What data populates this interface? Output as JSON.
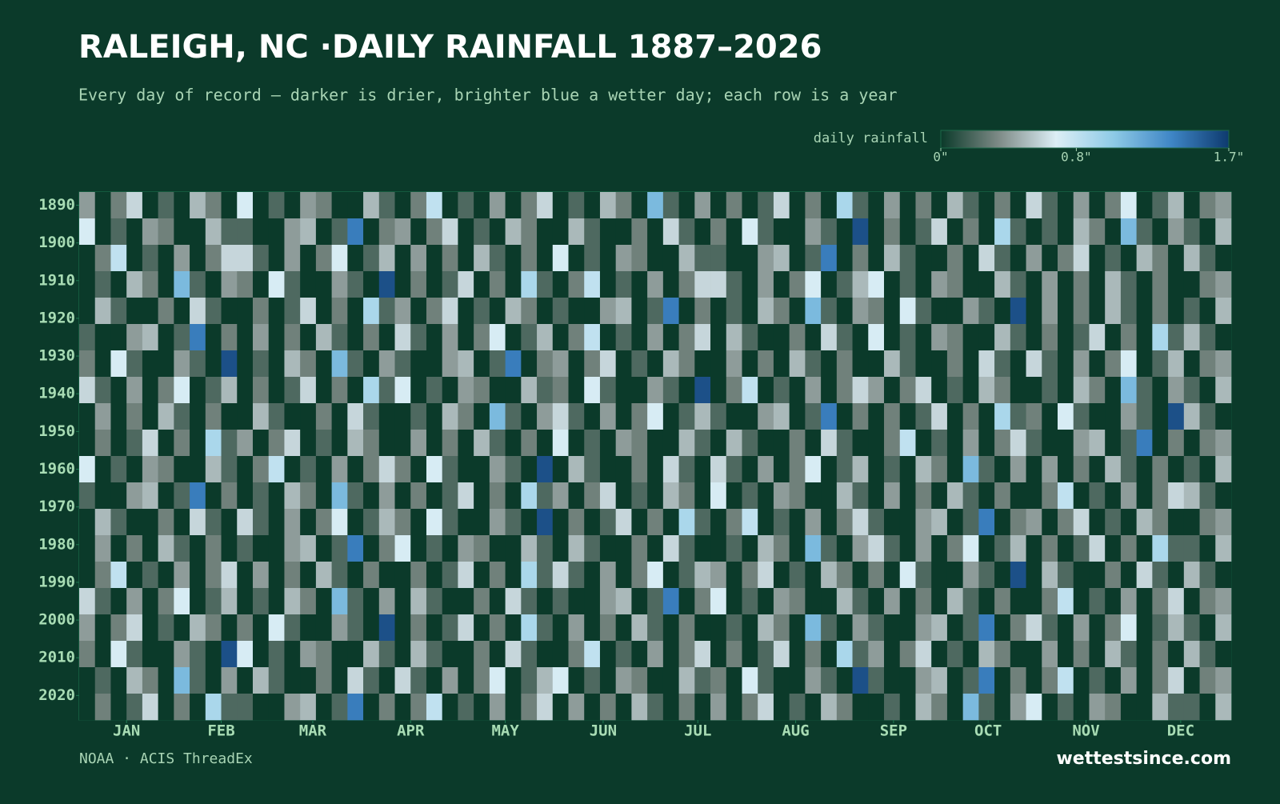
{
  "chart_data": {
    "type": "heatmap",
    "title": "RALEIGH, NC ·DAILY RAINFALL 1887–2026",
    "subtitle": "Every day of record — darker is drier, brighter blue a wetter day; each row is a year",
    "source": "NOAA · ACIS ThreadEx",
    "brand": "wettestsince.com",
    "colorbar_label": "daily rainfall",
    "zlim": [
      0,
      1.7
    ],
    "zticks": [
      {
        "value": 0,
        "label": "0\""
      },
      {
        "value": 0.8,
        "label": "0.8\""
      },
      {
        "value": 1.7,
        "label": "1.7\""
      }
    ],
    "colors": [
      "#0b3a2a",
      "#7d8a86",
      "#dceef5",
      "#8ecae6",
      "#3f86c6",
      "#0e3a6e"
    ],
    "ylim": [
      1887,
      2027
    ],
    "yticks": [
      1890,
      1900,
      1910,
      1920,
      1930,
      1940,
      1950,
      1960,
      1970,
      1980,
      1990,
      2000,
      2010,
      2020
    ],
    "xlim": [
      1,
      366
    ],
    "xticks": [
      {
        "value": 16,
        "label": "JAN"
      },
      {
        "value": 46,
        "label": "FEB"
      },
      {
        "value": 75,
        "label": "MAR"
      },
      {
        "value": 106,
        "label": "APR"
      },
      {
        "value": 136,
        "label": "MAY"
      },
      {
        "value": 167,
        "label": "JUN"
      },
      {
        "value": 197,
        "label": "JUL"
      },
      {
        "value": 228,
        "label": "AUG"
      },
      {
        "value": 259,
        "label": "SEP"
      },
      {
        "value": 289,
        "label": "OCT"
      },
      {
        "value": 320,
        "label": "NOV"
      },
      {
        "value": 350,
        "label": "DEC"
      }
    ],
    "z": [
      [
        0.4,
        0,
        0.3,
        0.6,
        0,
        0.2,
        0,
        0.5,
        0.3,
        0,
        0.7,
        0,
        0.2,
        0,
        0.4,
        0.3,
        0,
        0,
        0.5,
        0.2,
        0,
        0.3,
        0.8,
        0,
        0.2,
        0,
        0.4,
        0,
        0.3,
        0.6,
        0,
        0.2,
        0,
        0.5,
        0.3,
        0,
        1.1,
        0.2,
        0,
        0.4,
        0,
        0.3,
        0,
        0.2,
        0.6,
        0,
        0.3,
        0,
        0.9,
        0.2,
        0,
        0.4,
        0,
        0.3,
        0,
        0.5,
        0.2,
        0,
        0.3,
        0,
        0.6,
        0.2,
        0,
        0.4,
        0,
        0.3,
        0.7,
        0,
        0.2,
        0.5,
        0,
        0.3,
        0.4
      ],
      [
        0.7,
        0,
        0.2,
        0,
        0.4,
        0.3,
        0,
        0,
        0.5,
        0.2,
        0.2,
        0,
        0,
        0.4,
        0.5,
        0,
        0.2,
        1.4,
        0,
        0.3,
        0.4,
        0,
        0.3,
        0.6,
        0,
        0.2,
        0,
        0.5,
        0.3,
        0,
        0,
        0.5,
        0.2,
        0,
        0,
        0.3,
        0,
        0.6,
        0.2,
        0,
        0.3,
        0,
        0.7,
        0.2,
        0,
        0,
        0.4,
        0.2,
        0,
        1.6,
        0,
        0.3,
        0,
        0.2,
        0.6,
        0,
        0.3,
        0,
        0.9,
        0.2,
        0,
        0.2,
        0,
        0.5,
        0.3,
        0,
        1.1,
        0.2,
        0,
        0.4,
        0.2,
        0,
        0.5
      ],
      [
        0,
        0.3,
        0.8,
        0,
        0.2,
        0,
        0.4,
        0,
        0.3,
        0.6,
        0.6,
        0.2,
        0,
        0.4,
        0,
        0.3,
        0.7,
        0,
        0.2,
        0.5,
        0,
        0.4,
        0,
        0.3,
        0,
        0.5,
        0.2,
        0,
        0.3,
        0,
        0.7,
        0,
        0.2,
        0,
        0.4,
        0.3,
        0,
        0,
        0.5,
        0.2,
        0.2,
        0,
        0,
        0.4,
        0.5,
        0,
        0.2,
        1.4,
        0,
        0.3,
        0,
        0.5,
        0.2,
        0,
        0,
        0.3,
        0,
        0.6,
        0.2,
        0,
        0.4,
        0,
        0.3,
        0.6,
        0,
        0.2,
        0,
        0.5,
        0.3,
        0,
        0.5,
        0.2,
        0
      ],
      [
        0,
        0.2,
        0,
        0.5,
        0.3,
        0,
        1.1,
        0.2,
        0,
        0.4,
        0.3,
        0,
        0.7,
        0.2,
        0,
        0,
        0.4,
        0.2,
        0,
        1.6,
        0,
        0.3,
        0,
        0.2,
        0.6,
        0,
        0.3,
        0,
        0.9,
        0.2,
        0,
        0.3,
        0.8,
        0,
        0.2,
        0,
        0.4,
        0,
        0.3,
        0.6,
        0.6,
        0.2,
        0,
        0.4,
        0,
        0.3,
        0.7,
        0,
        0.2,
        0.5,
        0.7,
        0,
        0.2,
        0,
        0.4,
        0.3,
        0,
        0,
        0.5,
        0.2,
        0,
        0.4,
        0,
        0.3,
        0,
        0.5,
        0.2,
        0,
        0.3,
        0,
        0,
        0.3,
        0.4
      ],
      [
        0,
        0.5,
        0.2,
        0,
        0,
        0.3,
        0,
        0.6,
        0.2,
        0,
        0,
        0.3,
        0,
        0.2,
        0.6,
        0,
        0.3,
        0,
        0.9,
        0.2,
        0.4,
        0,
        0.3,
        0.6,
        0,
        0.2,
        0,
        0.5,
        0.3,
        0,
        0.2,
        0,
        0,
        0.4,
        0.5,
        0,
        0.2,
        1.4,
        0,
        0.3,
        0,
        0.2,
        0,
        0.5,
        0.3,
        0,
        1.1,
        0.2,
        0,
        0.4,
        0.3,
        0,
        0.7,
        0.2,
        0,
        0,
        0.4,
        0.2,
        0,
        1.6,
        0,
        0.4,
        0,
        0.3,
        0,
        0.5,
        0.2,
        0,
        0.3,
        0,
        0.2,
        0,
        0.5
      ],
      [
        0.2,
        0,
        0,
        0.4,
        0.5,
        0,
        0.2,
        1.4,
        0,
        0.3,
        0,
        0.4,
        0,
        0.3,
        0,
        0.5,
        0.2,
        0,
        0.3,
        0,
        0.6,
        0.2,
        0,
        0.4,
        0,
        0.3,
        0.7,
        0,
        0.2,
        0.5,
        0,
        0.3,
        0.8,
        0,
        0.2,
        0,
        0.4,
        0,
        0.3,
        0.6,
        0,
        0.5,
        0.2,
        0,
        0,
        0.3,
        0,
        0.6,
        0.2,
        0,
        0.7,
        0,
        0.2,
        0,
        0.4,
        0.3,
        0,
        0,
        0.5,
        0.2,
        0,
        0.3,
        0,
        0.2,
        0.6,
        0,
        0.3,
        0,
        0.9,
        0.2,
        0.5,
        0.2,
        0
      ],
      [
        0.3,
        0,
        0.7,
        0.2,
        0,
        0,
        0.4,
        0.2,
        0,
        1.6,
        0,
        0.2,
        0,
        0.5,
        0.3,
        0,
        1.1,
        0.2,
        0,
        0.4,
        0.2,
        0,
        0,
        0.4,
        0.5,
        0,
        0.2,
        1.4,
        0,
        0.3,
        0.4,
        0,
        0.3,
        0.6,
        0,
        0.2,
        0,
        0.5,
        0.3,
        0,
        0,
        0.4,
        0,
        0.3,
        0,
        0.5,
        0.2,
        0,
        0.3,
        0,
        0,
        0.5,
        0.2,
        0,
        0,
        0.3,
        0,
        0.6,
        0.2,
        0,
        0.6,
        0.2,
        0,
        0.4,
        0,
        0.3,
        0.7,
        0,
        0.2,
        0.5,
        0,
        0.3,
        0.4
      ],
      [
        0.6,
        0.2,
        0,
        0.4,
        0,
        0.3,
        0.7,
        0,
        0.2,
        0.5,
        0,
        0.3,
        0,
        0.2,
        0.6,
        0,
        0.3,
        0,
        0.9,
        0.2,
        0.7,
        0,
        0.2,
        0,
        0.4,
        0.3,
        0,
        0,
        0.5,
        0.2,
        0.3,
        0,
        0.7,
        0.2,
        0,
        0,
        0.4,
        0.2,
        0,
        1.6,
        0,
        0.3,
        0.8,
        0,
        0.2,
        0,
        0.4,
        0,
        0.3,
        0.6,
        0.4,
        0,
        0.3,
        0.6,
        0,
        0.2,
        0,
        0.5,
        0.3,
        0,
        0,
        0.2,
        0,
        0.5,
        0.3,
        0,
        1.1,
        0.2,
        0,
        0.4,
        0.2,
        0,
        0.5
      ],
      [
        0,
        0.4,
        0,
        0.3,
        0,
        0.5,
        0.2,
        0,
        0.3,
        0,
        0,
        0.5,
        0.2,
        0,
        0,
        0.3,
        0,
        0.6,
        0.2,
        0,
        0,
        0.2,
        0,
        0.5,
        0.3,
        0,
        1.1,
        0.2,
        0,
        0.4,
        0.6,
        0.2,
        0,
        0.4,
        0,
        0.3,
        0.7,
        0,
        0.2,
        0.5,
        0.2,
        0,
        0,
        0.4,
        0.5,
        0,
        0.2,
        1.4,
        0,
        0.3,
        0,
        0.3,
        0,
        0.2,
        0.6,
        0,
        0.3,
        0,
        0.9,
        0.2,
        0.3,
        0,
        0.7,
        0.2,
        0,
        0,
        0.4,
        0.2,
        0,
        1.6,
        0.5,
        0.2,
        0
      ],
      [
        0,
        0.3,
        0,
        0.2,
        0.6,
        0,
        0.3,
        0,
        0.9,
        0.2,
        0.4,
        0,
        0.3,
        0.6,
        0,
        0.2,
        0,
        0.5,
        0.3,
        0,
        0,
        0.4,
        0,
        0.3,
        0,
        0.5,
        0.2,
        0,
        0.3,
        0,
        0.7,
        0,
        0.2,
        0,
        0.4,
        0.3,
        0,
        0,
        0.5,
        0.2,
        0,
        0.5,
        0.2,
        0,
        0,
        0.3,
        0,
        0.6,
        0.2,
        0,
        0,
        0.3,
        0.8,
        0,
        0.2,
        0,
        0.4,
        0,
        0.3,
        0.6,
        0.2,
        0,
        0,
        0.4,
        0.5,
        0,
        0.2,
        1.4,
        0,
        0.3,
        0,
        0.3,
        0.4
      ],
      [
        0.7,
        0,
        0.2,
        0,
        0.4,
        0.3,
        0,
        0,
        0.5,
        0.2,
        0,
        0.3,
        0.8,
        0,
        0.2,
        0,
        0.4,
        0,
        0.3,
        0.6,
        0.3,
        0,
        0.7,
        0.2,
        0,
        0,
        0.4,
        0.2,
        0,
        1.6,
        0,
        0.5,
        0.2,
        0,
        0,
        0.3,
        0,
        0.6,
        0.2,
        0,
        0.6,
        0.2,
        0,
        0.4,
        0,
        0.3,
        0.7,
        0,
        0.2,
        0.5,
        0,
        0.2,
        0,
        0.5,
        0.3,
        0,
        1.1,
        0.2,
        0,
        0.4,
        0,
        0.4,
        0,
        0.3,
        0,
        0.5,
        0.2,
        0,
        0.3,
        0,
        0.2,
        0,
        0.5
      ],
      [
        0.2,
        0,
        0,
        0.4,
        0.5,
        0,
        0.2,
        1.4,
        0,
        0.3,
        0,
        0.2,
        0,
        0.5,
        0.3,
        0,
        1.1,
        0.2,
        0,
        0.4,
        0,
        0.3,
        0,
        0.2,
        0.6,
        0,
        0.3,
        0,
        0.9,
        0.2,
        0.4,
        0,
        0.3,
        0.6,
        0,
        0.2,
        0,
        0.5,
        0.3,
        0,
        0.7,
        0,
        0.2,
        0,
        0.4,
        0.3,
        0,
        0,
        0.5,
        0.2,
        0,
        0.4,
        0,
        0.3,
        0,
        0.5,
        0.2,
        0,
        0.3,
        0,
        0,
        0.3,
        0.8,
        0,
        0.2,
        0,
        0.4,
        0,
        0.3,
        0.6,
        0.5,
        0.2,
        0
      ],
      [
        0,
        0.5,
        0.2,
        0,
        0,
        0.3,
        0,
        0.6,
        0.2,
        0,
        0.6,
        0.2,
        0,
        0.4,
        0,
        0.3,
        0.7,
        0,
        0.2,
        0.5,
        0.3,
        0,
        0.7,
        0.2,
        0,
        0,
        0.4,
        0.2,
        0,
        1.6,
        0,
        0.3,
        0,
        0.2,
        0.6,
        0,
        0.3,
        0,
        0.9,
        0.2,
        0,
        0.3,
        0.8,
        0,
        0.2,
        0,
        0.4,
        0,
        0.3,
        0.6,
        0.2,
        0,
        0,
        0.4,
        0.5,
        0,
        0.2,
        1.4,
        0,
        0.3,
        0.4,
        0,
        0.3,
        0.6,
        0,
        0.2,
        0,
        0.5,
        0.3,
        0,
        0,
        0.3,
        0.4
      ],
      [
        0,
        0.4,
        0,
        0.3,
        0,
        0.5,
        0.2,
        0,
        0.3,
        0,
        0.2,
        0,
        0,
        0.4,
        0.5,
        0,
        0.2,
        1.4,
        0,
        0.3,
        0.7,
        0,
        0.2,
        0,
        0.4,
        0.3,
        0,
        0,
        0.5,
        0.2,
        0,
        0.5,
        0.2,
        0,
        0,
        0.3,
        0,
        0.6,
        0.2,
        0,
        0,
        0.2,
        0,
        0.5,
        0.3,
        0,
        1.1,
        0.2,
        0,
        0.4,
        0.6,
        0.2,
        0,
        0.4,
        0,
        0.3,
        0.7,
        0,
        0.2,
        0.5,
        0,
        0.3,
        0,
        0.2,
        0.6,
        0,
        0.3,
        0,
        0.9,
        0.2,
        0.2,
        0,
        0.5
      ],
      [
        0,
        0.3,
        0.8,
        0,
        0.2,
        0,
        0.4,
        0,
        0.3,
        0.6,
        0,
        0.4,
        0,
        0.3,
        0,
        0.5,
        0.2,
        0,
        0.3,
        0,
        0,
        0.3,
        0,
        0.2,
        0.6,
        0,
        0.3,
        0,
        0.9,
        0.2,
        0.6,
        0.2,
        0,
        0.4,
        0,
        0.3,
        0.7,
        0,
        0.2,
        0.5,
        0.4,
        0,
        0.3,
        0.6,
        0,
        0.2,
        0,
        0.5,
        0.3,
        0,
        0.3,
        0,
        0.7,
        0.2,
        0,
        0,
        0.4,
        0.2,
        0,
        1.6,
        0,
        0.5,
        0.2,
        0,
        0,
        0.3,
        0,
        0.6,
        0.2,
        0,
        0.5,
        0.2,
        0
      ],
      [
        0.6,
        0.2,
        0,
        0.4,
        0,
        0.3,
        0.7,
        0,
        0.2,
        0.5,
        0,
        0.2,
        0,
        0.5,
        0.3,
        0,
        1.1,
        0.2,
        0,
        0.4,
        0,
        0.5,
        0.2,
        0,
        0,
        0.3,
        0,
        0.6,
        0.2,
        0,
        0.2,
        0,
        0,
        0.4,
        0.5,
        0,
        0.2,
        1.4,
        0,
        0.3,
        0.7,
        0,
        0.2,
        0,
        0.4,
        0.3,
        0,
        0,
        0.5,
        0.2,
        0,
        0.4,
        0,
        0.3,
        0,
        0.5,
        0.2,
        0,
        0.3,
        0,
        0,
        0.3,
        0.8,
        0,
        0.2,
        0,
        0.4,
        0,
        0.3,
        0.6,
        0,
        0.3,
        0.4
      ],
      [
        0.4,
        0,
        0.3,
        0.6,
        0,
        0.2,
        0,
        0.5,
        0.3,
        0,
        0.3,
        0,
        0.7,
        0.2,
        0,
        0,
        0.4,
        0.2,
        0,
        1.6,
        0,
        0.3,
        0,
        0.2,
        0.6,
        0,
        0.3,
        0,
        0.9,
        0.2,
        0,
        0.4,
        0,
        0.3,
        0,
        0.5,
        0.2,
        0,
        0.3,
        0,
        0,
        0.2,
        0,
        0.5,
        0.3,
        0,
        1.1,
        0.2,
        0,
        0.4,
        0.2,
        0,
        0,
        0.4,
        0.5,
        0,
        0.2,
        1.4,
        0,
        0.3,
        0.6,
        0.2,
        0,
        0.4,
        0,
        0.3,
        0.7,
        0,
        0.2,
        0.5,
        0.2,
        0,
        0.5
      ],
      [
        0.3,
        0,
        0.7,
        0.2,
        0,
        0,
        0.4,
        0.2,
        0,
        1.6,
        0.7,
        0,
        0.2,
        0,
        0.4,
        0.3,
        0,
        0,
        0.5,
        0.2,
        0,
        0.5,
        0.2,
        0,
        0,
        0.3,
        0,
        0.6,
        0.2,
        0,
        0,
        0.3,
        0.8,
        0,
        0.2,
        0,
        0.4,
        0,
        0.3,
        0.6,
        0,
        0.3,
        0,
        0.2,
        0.6,
        0,
        0.3,
        0,
        0.9,
        0.2,
        0.4,
        0,
        0.3,
        0.6,
        0,
        0.2,
        0,
        0.5,
        0.3,
        0,
        0,
        0.4,
        0,
        0.3,
        0,
        0.5,
        0.2,
        0,
        0.3,
        0,
        0.5,
        0.2,
        0
      ],
      [
        0,
        0.2,
        0,
        0.5,
        0.3,
        0,
        1.1,
        0.2,
        0,
        0.4,
        0,
        0.5,
        0.2,
        0,
        0,
        0.3,
        0,
        0.6,
        0.2,
        0,
        0.6,
        0.2,
        0,
        0.4,
        0,
        0.3,
        0.7,
        0,
        0.2,
        0.5,
        0.7,
        0,
        0.2,
        0,
        0.4,
        0.3,
        0,
        0,
        0.5,
        0.2,
        0.3,
        0,
        0.7,
        0.2,
        0,
        0,
        0.4,
        0.2,
        0,
        1.6,
        0.2,
        0,
        0,
        0.4,
        0.5,
        0,
        0.2,
        1.4,
        0,
        0.3,
        0,
        0.3,
        0.8,
        0,
        0.2,
        0,
        0.4,
        0,
        0.3,
        0.6,
        0,
        0.3,
        0.4
      ],
      [
        0,
        0.3,
        0,
        0.2,
        0.6,
        0,
        0.3,
        0,
        0.9,
        0.2,
        0.2,
        0,
        0,
        0.4,
        0.5,
        0,
        0.2,
        1.4,
        0,
        0.3,
        0,
        0.3,
        0.8,
        0,
        0.2,
        0,
        0.4,
        0,
        0.3,
        0.6,
        0,
        0.4,
        0,
        0.3,
        0,
        0.5,
        0.2,
        0,
        0.3,
        0,
        0.4,
        0,
        0.3,
        0.6,
        0,
        0.2,
        0,
        0.5,
        0.3,
        0,
        0,
        0.2,
        0,
        0.5,
        0.3,
        0,
        1.1,
        0.2,
        0,
        0.4,
        0.7,
        0,
        0.2,
        0,
        0.4,
        0.3,
        0,
        0,
        0.5,
        0.2,
        0.2,
        0,
        0.5
      ]
    ]
  }
}
